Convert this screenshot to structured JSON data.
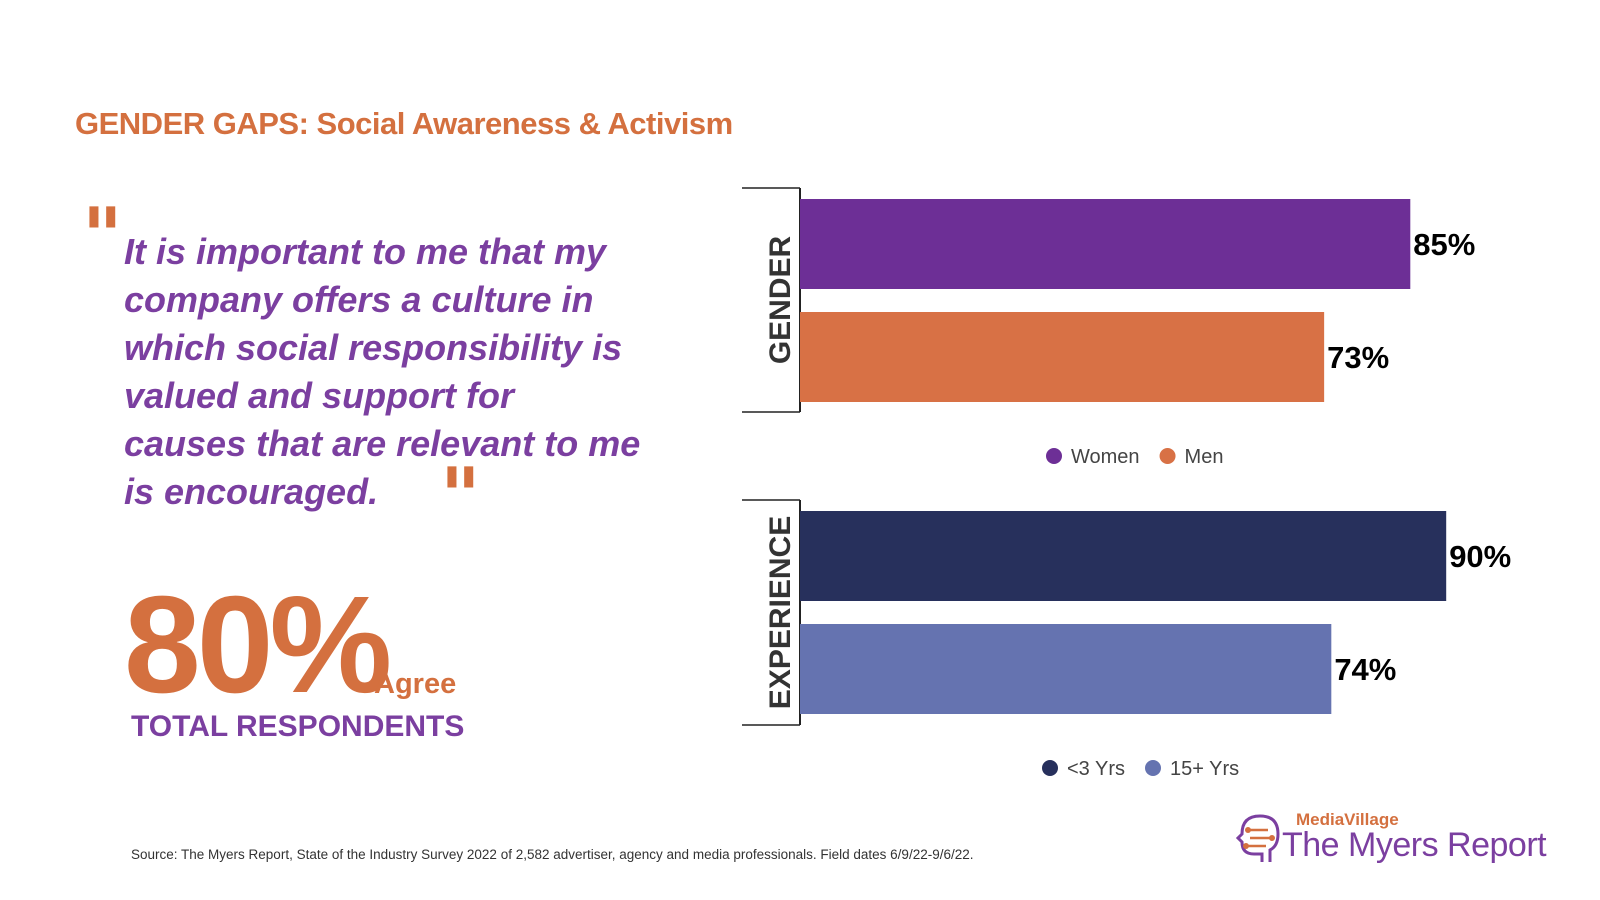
{
  "title": "GENDER GAPS: Social Awareness & Activism",
  "quote": {
    "open_mark": "\"",
    "text": "It is important to me that my company offers a culture in which social responsibility is valued and support for causes that are relevant to me is encouraged.",
    "close_mark": "\""
  },
  "headline": {
    "value": "80%",
    "suffix": "Agree",
    "caption": "TOTAL RESPONDENTS"
  },
  "source": "Source:  The Myers Report, State of the Industry Survey 2022 of 2,582 advertiser, agency and media professionals.  Field dates 6/9/22-9/6/22.",
  "logo": {
    "top": "MediaVillage",
    "bottom": "The Myers Report",
    "icon": "head-circuit-icon"
  },
  "chart_data": [
    {
      "type": "bar",
      "orientation": "horizontal",
      "category_label": "GENDER",
      "series": [
        {
          "name": "Women",
          "value": 85,
          "label": "85%",
          "color": "#6D2F96"
        },
        {
          "name": "Men",
          "value": 73,
          "label": "73%",
          "color": "#D87145"
        }
      ],
      "xlim": [
        0,
        100
      ],
      "legend": "bottom"
    },
    {
      "type": "bar",
      "orientation": "horizontal",
      "category_label": "EXPERIENCE",
      "series": [
        {
          "name": "<3 Yrs",
          "value": 90,
          "label": "90%",
          "color": "#27305C"
        },
        {
          "name": "15+ Yrs",
          "value": 74,
          "label": "74%",
          "color": "#6573B0"
        }
      ],
      "xlim": [
        0,
        100
      ],
      "legend": "bottom"
    }
  ]
}
